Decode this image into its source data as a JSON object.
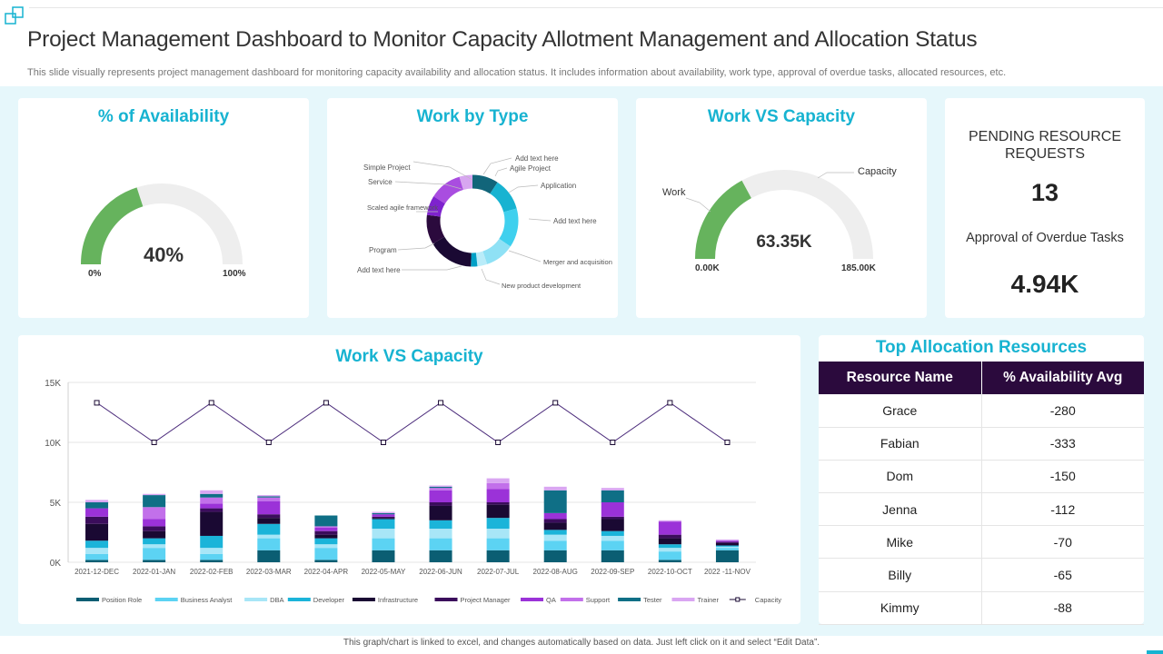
{
  "header": {
    "title": "Project Management Dashboard to Monitor Capacity Allotment Management and Allocation Status",
    "subtitle": "This slide visually represents project management dashboard for monitoring capacity availability and allocation status. It includes information about  availability, work type,  approval of overdue tasks, allocated resources, etc."
  },
  "availability": {
    "title": "% of Availability",
    "value": 40,
    "value_label": "40%",
    "min_label": "0%",
    "max_label": "100%"
  },
  "work_by_type": {
    "title": "Work by Type",
    "labels": [
      "Add text here",
      "Agile Project",
      "Application",
      "Add text here",
      "Merger and acquisition",
      "New product development",
      "Add text here",
      "Program",
      "Scaled agile framework",
      "Service",
      "Simple Project"
    ]
  },
  "work_vs_capacity_gauge": {
    "title": "Work VS Capacity",
    "work_label": "Work",
    "capacity_label": "Capacity",
    "value_label": "63.35K",
    "min_label": "0.00K",
    "max_label": "185.00K",
    "work": 63.35,
    "capacity": 185.0
  },
  "pending": {
    "title": "PENDING RESOURCE REQUESTS",
    "count": "13",
    "overdue_title": "Approval of Overdue Tasks",
    "overdue_value": "4.94K"
  },
  "allocation": {
    "title": "Top Allocation Resources",
    "columns": [
      "Resource Name",
      "% Availability Avg"
    ],
    "rows": [
      [
        "Grace",
        "-280"
      ],
      [
        "Fabian",
        "-333"
      ],
      [
        "Dom",
        "-150"
      ],
      [
        "Jenna",
        "-112"
      ],
      [
        "Mike",
        "-70"
      ],
      [
        "Billy",
        "-65"
      ],
      [
        "Kimmy",
        "-88"
      ]
    ]
  },
  "footer": {
    "note": "This graph/chart is linked to excel, and changes automatically based on data. Just left click on it and select “Edit Data”."
  },
  "chart_data": [
    {
      "type": "pie",
      "title": "Work by Type",
      "style": "donut",
      "categories": [
        "Agile Project",
        "Application",
        "Add text here",
        "Merger and acquisition",
        "New product development",
        "Add text here",
        "Program",
        "Scaled agile framework",
        "Service",
        "Simple Project",
        "Add text here"
      ],
      "values": [
        8,
        10,
        12,
        9,
        3,
        2,
        14,
        9,
        6,
        10,
        4
      ],
      "colors": [
        "#12657a",
        "#17b3d1",
        "#3fd0ee",
        "#8fe1f5",
        "#b9ecf9",
        "#00a0c6",
        "#1a0933",
        "#2b0a3d",
        "#7e22ce",
        "#a94de0",
        "#d7a6f0"
      ]
    },
    {
      "type": "bar",
      "title": "Work VS Capacity",
      "stacked": true,
      "categories": [
        "2021-12-DEC",
        "2022-01-JAN",
        "2022-02-FEB",
        "2022-03-MAR",
        "2022-04-APR",
        "2022-05-MAY",
        "2022-06-JUN",
        "2022-07-JUL",
        "2022-08-AUG",
        "2022-09-SEP",
        "2022-10-OCT",
        "2022 -11-NOV"
      ],
      "ylim": [
        0,
        15000
      ],
      "yticks": [
        0,
        5000,
        10000,
        15000
      ],
      "ytick_labels": [
        "0K",
        "5K",
        "10K",
        "15K"
      ],
      "legend_position": "bottom",
      "series": [
        {
          "name": "Position Role",
          "color": "#0b5e73",
          "values": [
            200,
            200,
            200,
            1000,
            200,
            1000,
            1000,
            1000,
            1000,
            1000,
            200,
            1000
          ]
        },
        {
          "name": "Business Analyst",
          "color": "#5cd3f3",
          "values": [
            500,
            1000,
            500,
            1000,
            1000,
            1000,
            1000,
            1000,
            800,
            800,
            700,
            200
          ]
        },
        {
          "name": "DBA",
          "color": "#a8e6f7",
          "values": [
            500,
            300,
            500,
            300,
            300,
            800,
            800,
            800,
            500,
            400,
            300,
            100
          ]
        },
        {
          "name": "Developer",
          "color": "#1bb4d9",
          "values": [
            600,
            500,
            1000,
            900,
            500,
            800,
            700,
            900,
            400,
            400,
            300,
            100
          ]
        },
        {
          "name": "Infrastructure",
          "color": "#1a0933",
          "values": [
            1400,
            600,
            2000,
            500,
            300,
            100,
            1200,
            1100,
            600,
            1000,
            500,
            200
          ]
        },
        {
          "name": "Project Manager",
          "color": "#3b0d5c",
          "values": [
            600,
            400,
            300,
            300,
            300,
            100,
            300,
            200,
            300,
            200,
            300,
            100
          ]
        },
        {
          "name": "QA",
          "color": "#9b32d8",
          "values": [
            700,
            600,
            400,
            1100,
            300,
            200,
            1000,
            1100,
            500,
            1200,
            1100,
            100
          ]
        },
        {
          "name": "Support",
          "color": "#c270ea",
          "values": [
            0,
            1000,
            500,
            300,
            100,
            0,
            200,
            500,
            0,
            0,
            0,
            0
          ]
        },
        {
          "name": "Tester",
          "color": "#0f6f86",
          "values": [
            500,
            1000,
            300,
            100,
            900,
            100,
            100,
            0,
            1900,
            1000,
            0,
            0
          ]
        },
        {
          "name": "Trainer",
          "color": "#d9a6f2",
          "values": [
            200,
            100,
            300,
            100,
            0,
            100,
            100,
            400,
            300,
            200,
            100,
            100
          ]
        },
        {
          "name": "Capacity",
          "type": "line",
          "color": "#4a2a7a",
          "values": [
            13300,
            10000,
            13300,
            10000,
            13300,
            10000,
            13300,
            10000,
            13300,
            10000,
            13300,
            10000
          ]
        }
      ]
    },
    {
      "type": "gauge",
      "title": "% of Availability",
      "value": 40,
      "min": 0,
      "max": 100
    },
    {
      "type": "gauge",
      "title": "Work VS Capacity",
      "value": 63.35,
      "min": 0,
      "max": 185
    }
  ]
}
